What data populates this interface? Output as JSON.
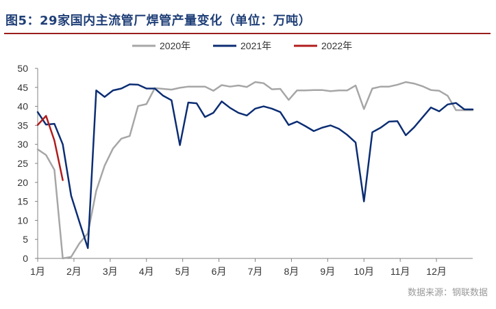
{
  "header": {
    "title": "图5：29家国内主流管厂焊管产量变化（单位：万吨）"
  },
  "footer": {
    "source": "数据来源：钢联数据"
  },
  "colors": {
    "title": "#1f3f77",
    "rule": "#9b1c1c",
    "s2020": "#a6a6a6",
    "s2021": "#0b2d73",
    "s2022": "#b01c1c",
    "axis": "#808080",
    "source": "#9a9a9a"
  },
  "chart_data": {
    "type": "line",
    "title": "图5：29家国内主流管厂焊管产量变化（单位：万吨）",
    "xlabel": "",
    "ylabel": "",
    "x_tick_labels": [
      "1月",
      "2月",
      "3月",
      "4月",
      "5月",
      "6月",
      "7月",
      "8月",
      "9月",
      "10月",
      "11月",
      "12月"
    ],
    "yticks": [
      0,
      5,
      10,
      15,
      20,
      25,
      30,
      35,
      40,
      45,
      50
    ],
    "ylim": [
      0,
      50
    ],
    "grid": false,
    "legend_position": "top",
    "x_unit": "week",
    "xlim": [
      1,
      53
    ],
    "series": [
      {
        "name": "2020年",
        "color": "#a6a6a6",
        "x": [
          1,
          2,
          3,
          4,
          5,
          6,
          7,
          8,
          9,
          10,
          11,
          12,
          13,
          14,
          15,
          16,
          17,
          18,
          19,
          20,
          21,
          22,
          23,
          24,
          25,
          26,
          27,
          28,
          29,
          30,
          31,
          32,
          33,
          34,
          35,
          36,
          37,
          38,
          39,
          40,
          41,
          42,
          43,
          44,
          45,
          46,
          47,
          48,
          49,
          50,
          51,
          52,
          53
        ],
        "values": [
          28.7,
          27.2,
          23.3,
          0,
          0.4,
          4.0,
          6.6,
          17.8,
          24.4,
          28.9,
          31.5,
          32.2,
          40.1,
          40.6,
          44.8,
          44.6,
          44.4,
          44.9,
          45.2,
          45.2,
          45.2,
          44.1,
          45.6,
          45.2,
          45.5,
          45.1,
          46.4,
          46.1,
          44.5,
          44.6,
          41.7,
          44.2,
          44.2,
          44.3,
          44.3,
          44.0,
          44.2,
          44.2,
          45.5,
          39.3,
          44.7,
          45.2,
          45.2,
          45.7,
          46.4,
          46.0,
          45.3,
          44.3,
          44.1,
          42.8,
          39.0,
          39.0,
          39.0
        ]
      },
      {
        "name": "2021年",
        "color": "#0b2d73",
        "x": [
          1,
          2,
          3,
          4,
          5,
          6,
          7,
          8,
          9,
          10,
          11,
          12,
          13,
          14,
          15,
          16,
          17,
          18,
          19,
          20,
          21,
          22,
          23,
          24,
          25,
          26,
          27,
          28,
          29,
          30,
          31,
          32,
          33,
          34,
          35,
          36,
          37,
          38,
          39,
          40,
          41,
          42,
          43,
          44,
          45,
          46,
          47,
          48,
          49,
          50,
          51,
          52,
          53
        ],
        "values": [
          38.5,
          35.2,
          35.4,
          30.0,
          16.5,
          9.5,
          2.7,
          44.2,
          42.5,
          44.2,
          44.7,
          45.8,
          45.7,
          44.7,
          44.7,
          42.8,
          41.6,
          29.8,
          41.0,
          40.8,
          37.2,
          38.3,
          41.3,
          39.6,
          38.3,
          37.6,
          39.4,
          40.0,
          39.4,
          38.5,
          35.1,
          36.0,
          34.8,
          33.5,
          34.4,
          35.0,
          34.1,
          32.5,
          30.5,
          15.0,
          33.2,
          34.4,
          36.0,
          36.1,
          32.4,
          34.5,
          37.1,
          39.7,
          38.7,
          40.5,
          40.9,
          39.2,
          39.2
        ]
      },
      {
        "name": "2022年",
        "color": "#b01c1c",
        "x": [
          1,
          2,
          3,
          4
        ],
        "values": [
          35.1,
          37.5,
          31.0,
          20.6
        ]
      }
    ]
  }
}
